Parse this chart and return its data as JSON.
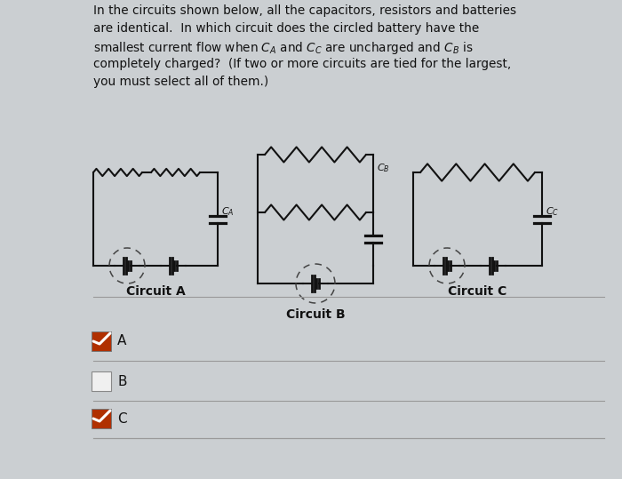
{
  "bg_color": "#cbcfd2",
  "text_color": "#111111",
  "circuit_a_label": "Circuit A",
  "circuit_b_label": "Circuit B",
  "circuit_c_label": "Circuit C",
  "options": [
    "A",
    "B",
    "C"
  ],
  "checked": [
    true,
    false,
    true
  ],
  "checkbox_color_checked": "#b03000",
  "line_color": "#111111",
  "separator_color": "#999999",
  "fig_w": 7.0,
  "fig_h": 5.39,
  "dpi": 100
}
